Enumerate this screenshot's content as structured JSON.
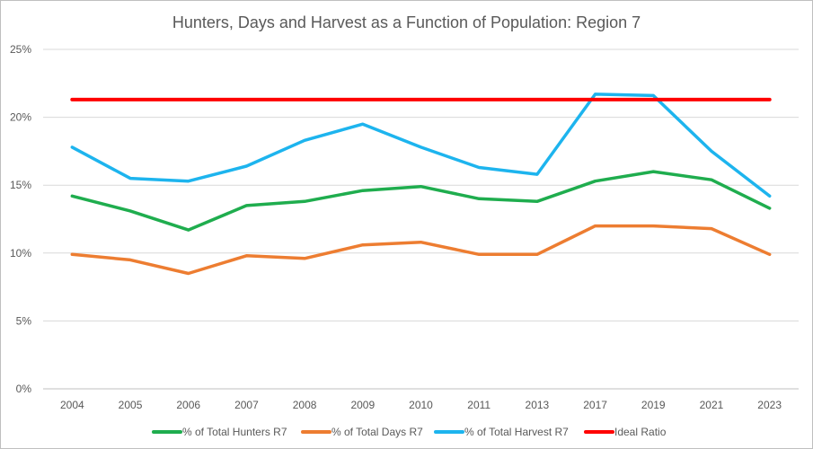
{
  "chart_data": {
    "type": "line",
    "title": "Hunters, Days and Harvest as a Function of Population: Region 7",
    "categories": [
      "2004",
      "2005",
      "2006",
      "2007",
      "2008",
      "2009",
      "2010",
      "2011",
      "2013",
      "2017",
      "2019",
      "2021",
      "2023"
    ],
    "ylim": [
      0,
      25
    ],
    "yticks": [
      0,
      5,
      10,
      15,
      20,
      25
    ],
    "ytick_labels": [
      "0%",
      "5%",
      "10%",
      "15%",
      "20%",
      "25%"
    ],
    "grid": true,
    "legend_position": "bottom",
    "series": [
      {
        "name": "% of Total Hunters R7",
        "color": "#1fad4e",
        "values": [
          14.2,
          13.1,
          11.7,
          13.5,
          13.8,
          14.6,
          14.9,
          14.0,
          13.8,
          15.3,
          16.0,
          15.4,
          13.3
        ]
      },
      {
        "name": "% of Total Days R7",
        "color": "#ed7d31",
        "values": [
          9.9,
          9.5,
          8.5,
          9.8,
          9.6,
          10.6,
          10.8,
          9.9,
          9.9,
          12.0,
          12.0,
          11.8,
          9.9
        ]
      },
      {
        "name": "% of Total Harvest R7",
        "color": "#1db4ee",
        "values": [
          17.8,
          15.5,
          15.3,
          16.4,
          18.3,
          19.5,
          17.8,
          16.3,
          15.8,
          21.7,
          21.6,
          17.5,
          14.2
        ]
      },
      {
        "name": "Ideal Ratio",
        "color": "#ff0000",
        "values": [
          21.3,
          21.3,
          21.3,
          21.3,
          21.3,
          21.3,
          21.3,
          21.3,
          21.3,
          21.3,
          21.3,
          21.3,
          21.3
        ]
      }
    ]
  }
}
